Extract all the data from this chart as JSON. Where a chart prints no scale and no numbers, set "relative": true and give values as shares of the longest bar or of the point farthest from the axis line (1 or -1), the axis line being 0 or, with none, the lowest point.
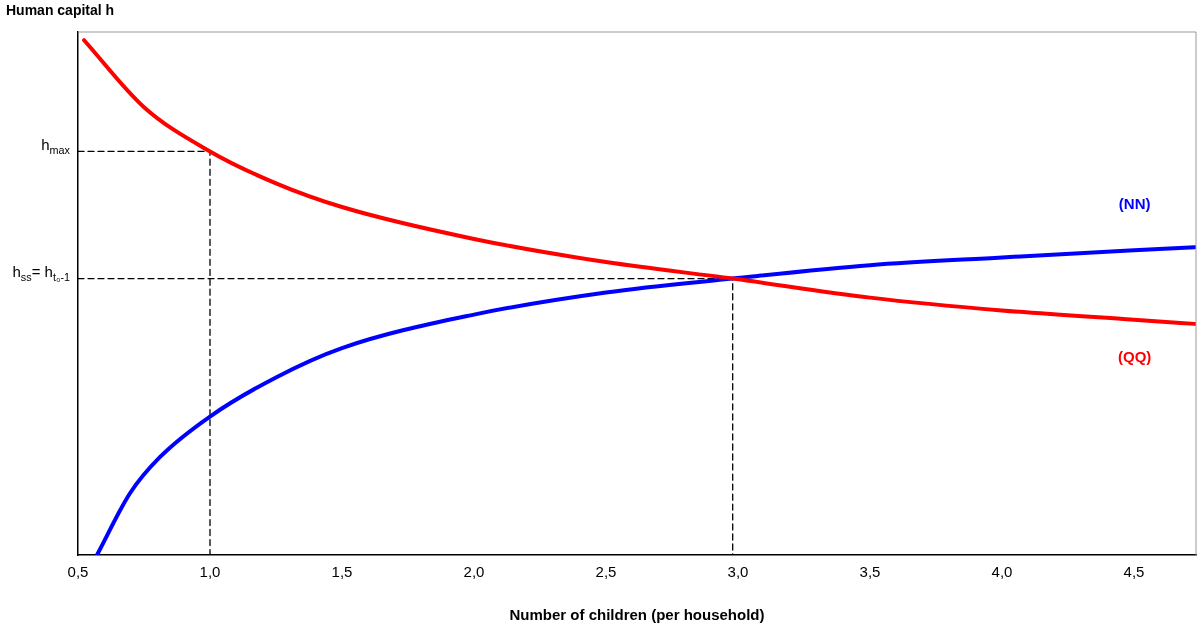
{
  "chart_data": {
    "type": "line",
    "relative": true,
    "ylabel": "Human capital h",
    "xlabel": "Number of children (per household)",
    "xlim": [
      0.5,
      4.735
    ],
    "xticks": [
      {
        "value": 0.5,
        "label": "0,5"
      },
      {
        "value": 1.0,
        "label": "1,0"
      },
      {
        "value": 1.5,
        "label": "1,5"
      },
      {
        "value": 2.0,
        "label": "2,0"
      },
      {
        "value": 2.5,
        "label": "2,5"
      },
      {
        "value": 3.0,
        "label": "3,0"
      },
      {
        "value": 3.5,
        "label": "3,5"
      },
      {
        "value": 4.0,
        "label": "4,0"
      },
      {
        "value": 4.5,
        "label": "4,5"
      }
    ],
    "tick_labels": "x",
    "grid": false,
    "legend": false,
    "marker": "none",
    "series": [
      {
        "name": "(QQ)",
        "color": "#ff0000",
        "line_style": "solid",
        "x": [
          0.523,
          0.75,
          1.0,
          1.25,
          1.5,
          2.0,
          2.5,
          2.98,
          3.5,
          4.0,
          4.5,
          4.73
        ],
        "values": [
          1.0,
          0.87,
          0.784,
          0.722,
          0.676,
          0.614,
          0.569,
          0.537,
          0.5,
          0.475,
          0.457,
          0.449
        ]
      },
      {
        "name": "(NN)",
        "color": "#0000ff",
        "line_style": "solid",
        "x": [
          0.572,
          0.697,
          0.81,
          1.0,
          1.25,
          1.5,
          2.0,
          2.5,
          2.98,
          3.5,
          4.0,
          4.5,
          4.73
        ],
        "values": [
          0,
          0.12,
          0.19,
          0.269,
          0.345,
          0.402,
          0.467,
          0.51,
          0.537,
          0.563,
          0.578,
          0.592,
          0.598
        ]
      },
      {
        "color": "#000000",
        "line_style": "dashed",
        "x": [
          0.5,
          1.0,
          1.0
        ],
        "values": [
          0.784,
          0.784,
          0
        ]
      },
      {
        "color": "#000000",
        "line_style": "dashed",
        "x": [
          0.5,
          2.98,
          2.98
        ],
        "values": [
          0.537,
          0.537,
          0
        ]
      }
    ],
    "annotations": [
      {
        "text": "h$_{max}$",
        "x": 0.5,
        "y": 0.784
      },
      {
        "text": "h$_{ss}$= h$_{t₀-1}$",
        "x": 0.5,
        "y": 0.537
      }
    ]
  }
}
